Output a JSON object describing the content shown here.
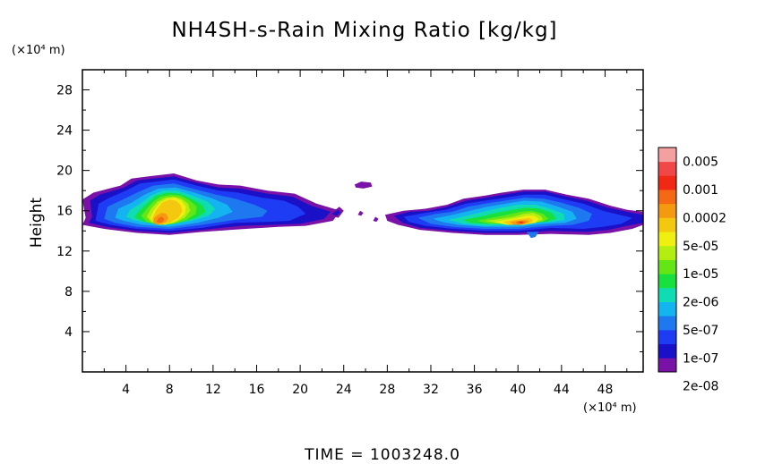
{
  "chart_data": {
    "type": "heatmap",
    "title": "NH4SH-s-Rain Mixing Ratio [kg/kg]",
    "ylabel": "Height",
    "xlabel": "",
    "x_unit": "(×10⁴ m)",
    "y_unit": "(×10⁴ m)",
    "xlim": [
      0,
      51.5
    ],
    "ylim": [
      0,
      30
    ],
    "x_ticks": [
      "4",
      "8",
      "12",
      "16",
      "20",
      "24",
      "28",
      "32",
      "36",
      "40",
      "44",
      "48"
    ],
    "y_ticks": [
      "4",
      "8",
      "12",
      "16",
      "20",
      "24",
      "28"
    ],
    "grid": false,
    "footer": "TIME = 1003248.0",
    "colorbar": {
      "labels": [
        "0.005",
        "0.001",
        "0.0002",
        "5e-05",
        "1e-05",
        "2e-06",
        "5e-07",
        "1e-07",
        "2e-08"
      ],
      "colors": [
        "#7a12a8",
        "#1a10c8",
        "#1f3cf5",
        "#1e78f0",
        "#14b4f0",
        "#10dcb4",
        "#18e03c",
        "#64e616",
        "#b4ee10",
        "#f0f010",
        "#f5c810",
        "#f59a10",
        "#f56814",
        "#f02814",
        "#f04848",
        "#f5a0a0"
      ]
    },
    "regions": [
      {
        "name": "west-cloud",
        "x_range": [
          0,
          24
        ],
        "z_range": [
          13.6,
          19.5
        ],
        "peak": "0.0002",
        "peak_center": [
          7,
          16
        ]
      },
      {
        "name": "central-fragments",
        "x_range": [
          24.5,
          26.5
        ],
        "z_range": [
          15,
          19
        ]
      },
      {
        "name": "east-cloud",
        "x_range": [
          27.5,
          51.5
        ],
        "z_range": [
          13.5,
          18.3
        ],
        "peak": "0.001",
        "peak_center": [
          40.5,
          15
        ]
      }
    ]
  }
}
